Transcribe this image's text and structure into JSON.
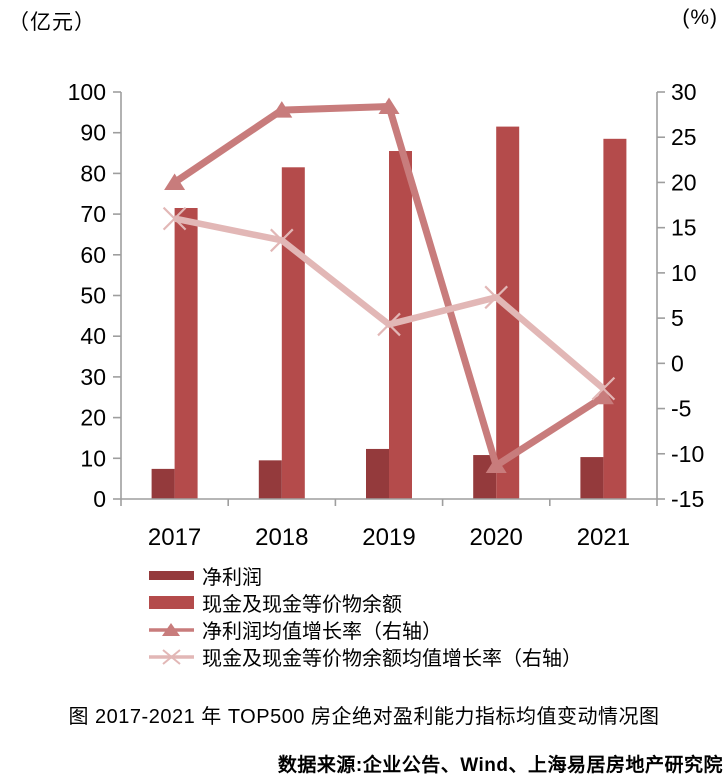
{
  "colors": {
    "bar1": "#943A3C",
    "bar2": "#B44B4B",
    "line1": "#C87C7C",
    "line2": "#E2B7B6",
    "axis": "#9E9E9E",
    "text": "#000000"
  },
  "chart_data": {
    "type": "bar",
    "combo": "bar+line, dual axis",
    "categories": [
      "2017",
      "2018",
      "2019",
      "2020",
      "2021"
    ],
    "bar_series": [
      {
        "name": "净利润",
        "axis": "left",
        "unit": "亿元",
        "values": [
          7.4,
          9.5,
          12.3,
          10.8,
          10.3
        ]
      },
      {
        "name": "现金及现金等价物余额",
        "axis": "left",
        "unit": "亿元",
        "values": [
          71.5,
          81.5,
          85.5,
          91.5,
          88.5
        ]
      }
    ],
    "line_series": [
      {
        "name": "净利润均值增长率（右轴）",
        "axis": "right",
        "unit": "%",
        "marker": "triangle",
        "values": [
          20,
          28,
          28.4,
          -11.3,
          -3.7
        ]
      },
      {
        "name": "现金及现金等价物余额均值增长率（右轴）",
        "axis": "right",
        "unit": "%",
        "marker": "x",
        "values": [
          16,
          13.6,
          4.3,
          7.3,
          -2.8
        ]
      }
    ],
    "left_axis": {
      "unit_label": "（亿元）",
      "min": 0,
      "max": 100,
      "step": 10,
      "tick_labels": [
        "0",
        "10",
        "20",
        "30",
        "40",
        "50",
        "60",
        "70",
        "80",
        "90",
        "100"
      ]
    },
    "right_axis": {
      "unit_label": "(%)",
      "min": -15,
      "max": 30,
      "step": 5,
      "tick_labels": [
        "-15",
        "-10",
        "-5",
        "0",
        "5",
        "10",
        "15",
        "20",
        "25",
        "30"
      ]
    },
    "legend_position": "bottom-left",
    "grid": false
  },
  "footer": {
    "title": "图  2017-2021 年 TOP500 房企绝对盈利能力指标均值变动情况图",
    "source": "数据来源:企业公告、Wind、上海易居房地产研究院"
  }
}
